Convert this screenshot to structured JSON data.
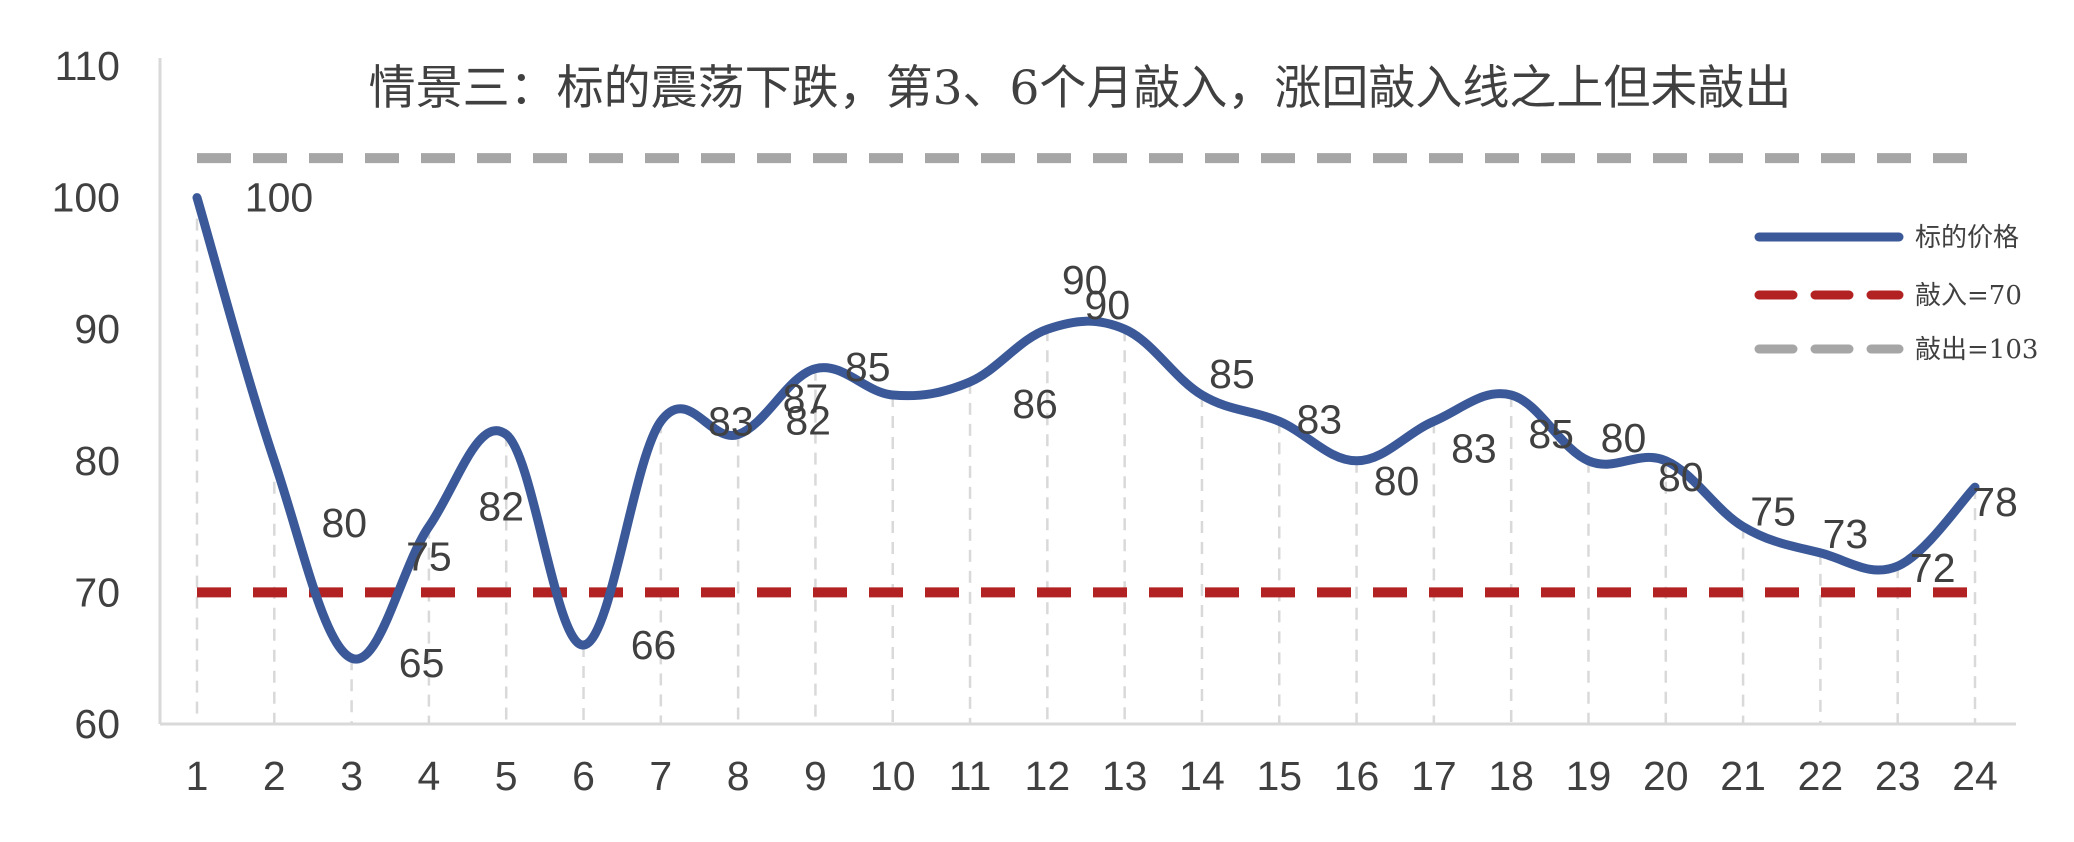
{
  "chart_data": {
    "type": "line",
    "title": "情景三：标的震荡下跌，第3、6个月敲入，涨回敲入线之上但未敲出",
    "xlabel": "",
    "ylabel": "",
    "categories": [
      "1",
      "2",
      "3",
      "4",
      "5",
      "6",
      "7",
      "8",
      "9",
      "10",
      "11",
      "12",
      "13",
      "14",
      "15",
      "16",
      "17",
      "18",
      "19",
      "20",
      "21",
      "22",
      "23",
      "24"
    ],
    "ylim": [
      60,
      110
    ],
    "yticks": [
      "60",
      "70",
      "80",
      "90",
      "100",
      "110"
    ],
    "grid": "vertical dashed lines at each month",
    "legend_position": "right",
    "series": [
      {
        "name": "标的价格",
        "style": "solid-smooth",
        "color": "#3B5998",
        "values": [
          100,
          80,
          65,
          75,
          82,
          66,
          83,
          82,
          87,
          85,
          86,
          90,
          90,
          85,
          83,
          80,
          83,
          85,
          80,
          80,
          75,
          73,
          72,
          78
        ],
        "data_labels": [
          "100",
          "80",
          "65",
          "75",
          "82",
          "66",
          "83",
          "82",
          "87",
          "85",
          "86",
          "90",
          "90",
          "85",
          "83",
          "80",
          "83",
          "85",
          "80",
          "80",
          "75",
          "73",
          "72",
          "78"
        ]
      },
      {
        "name": "敲入=70",
        "style": "dashed",
        "color": "#B22222",
        "value": 70
      },
      {
        "name": "敲出=103",
        "style": "dashed",
        "color": "#A6A6A6",
        "value": 103
      }
    ]
  }
}
